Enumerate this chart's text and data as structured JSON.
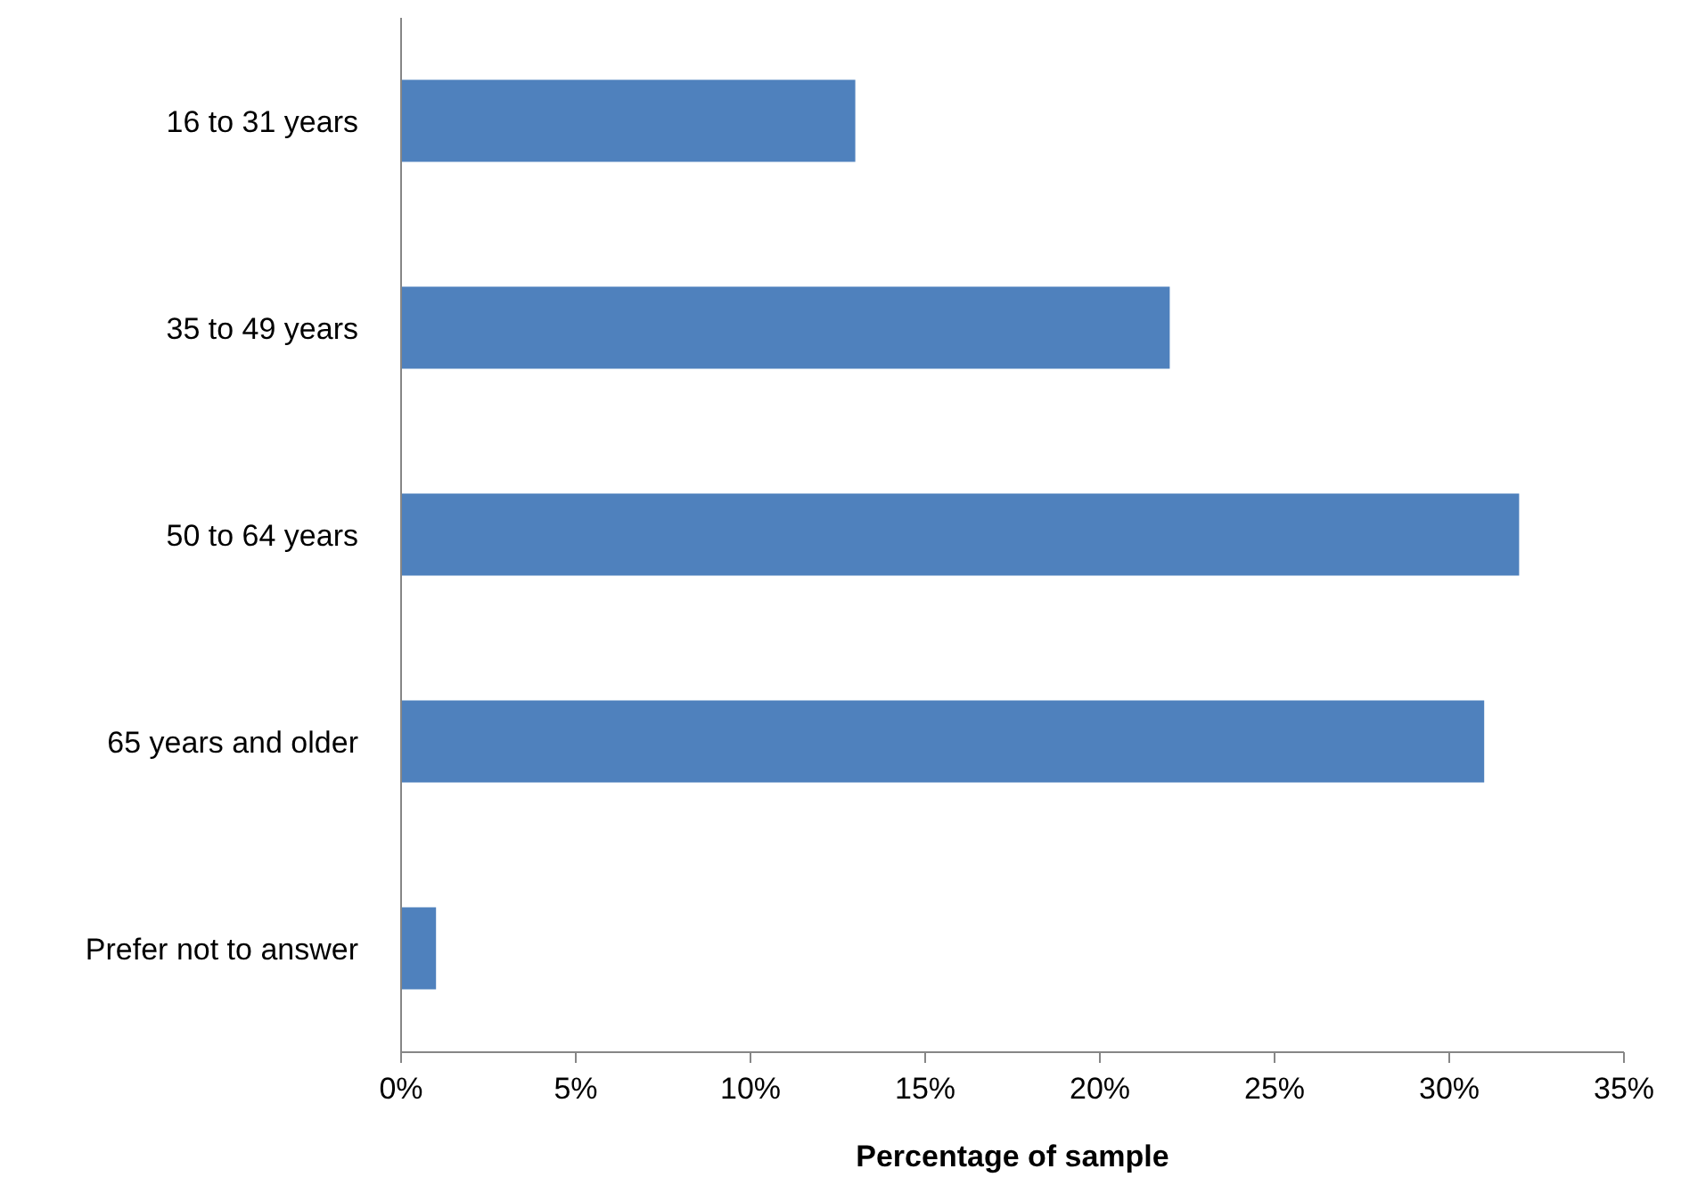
{
  "chart_data": {
    "type": "bar",
    "orientation": "horizontal",
    "xlabel": "Percentage of sample",
    "categories": [
      "16 to 31 years",
      "35 to 49 years",
      "50 to 64 years",
      "65 years and older",
      "Prefer not to answer"
    ],
    "values": [
      13,
      22,
      32,
      31,
      1
    ],
    "color": "#4f81bd",
    "xlim": [
      0,
      35
    ],
    "xticks": [
      {
        "value": 0,
        "label": "0%"
      },
      {
        "value": 5,
        "label": "5%"
      },
      {
        "value": 10,
        "label": "10%"
      },
      {
        "value": 15,
        "label": "15%"
      },
      {
        "value": 20,
        "label": "20%"
      },
      {
        "value": 25,
        "label": "25%"
      },
      {
        "value": 30,
        "label": "30%"
      },
      {
        "value": 35,
        "label": "35%"
      }
    ],
    "grid": false,
    "legend": false
  }
}
